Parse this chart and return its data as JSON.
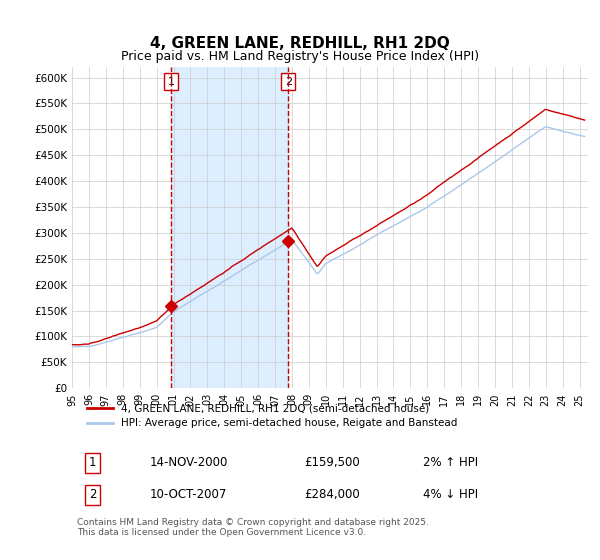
{
  "title": "4, GREEN LANE, REDHILL, RH1 2DQ",
  "subtitle": "Price paid vs. HM Land Registry's House Price Index (HPI)",
  "title_fontsize": 11,
  "subtitle_fontsize": 9,
  "xlabel": "",
  "ylabel": "",
  "ylim": [
    0,
    620000
  ],
  "yticks": [
    0,
    50000,
    100000,
    150000,
    200000,
    250000,
    300000,
    350000,
    400000,
    450000,
    500000,
    550000,
    600000
  ],
  "ytick_labels": [
    "£0",
    "£50K",
    "£100K",
    "£150K",
    "£200K",
    "£250K",
    "£300K",
    "£350K",
    "£400K",
    "£450K",
    "£500K",
    "£550K",
    "£600K"
  ],
  "background_color": "#ffffff",
  "plot_bg_color": "#ffffff",
  "grid_color": "#cccccc",
  "hpi_line_color": "#aac8e8",
  "price_line_color": "#cc0000",
  "shade_color": "#ddeeff",
  "dashed_line_color": "#cc0000",
  "marker1_color": "#cc0000",
  "marker2_color": "#cc0000",
  "sale1_x": 2000.87,
  "sale1_y": 159500,
  "sale2_x": 2007.78,
  "sale2_y": 284000,
  "annotation1": "1",
  "annotation2": "2",
  "legend_line1": "4, GREEN LANE, REDHILL, RH1 2DQ (semi-detached house)",
  "legend_line2": "HPI: Average price, semi-detached house, Reigate and Banstead",
  "table_row1": [
    "1",
    "14-NOV-2000",
    "£159,500",
    "2% ↑ HPI"
  ],
  "table_row2": [
    "2",
    "10-OCT-2007",
    "£284,000",
    "4% ↓ HPI"
  ],
  "footnote": "Contains HM Land Registry data © Crown copyright and database right 2025.\nThis data is licensed under the Open Government Licence v3.0.",
  "xmin": 1995,
  "xmax": 2025.5
}
